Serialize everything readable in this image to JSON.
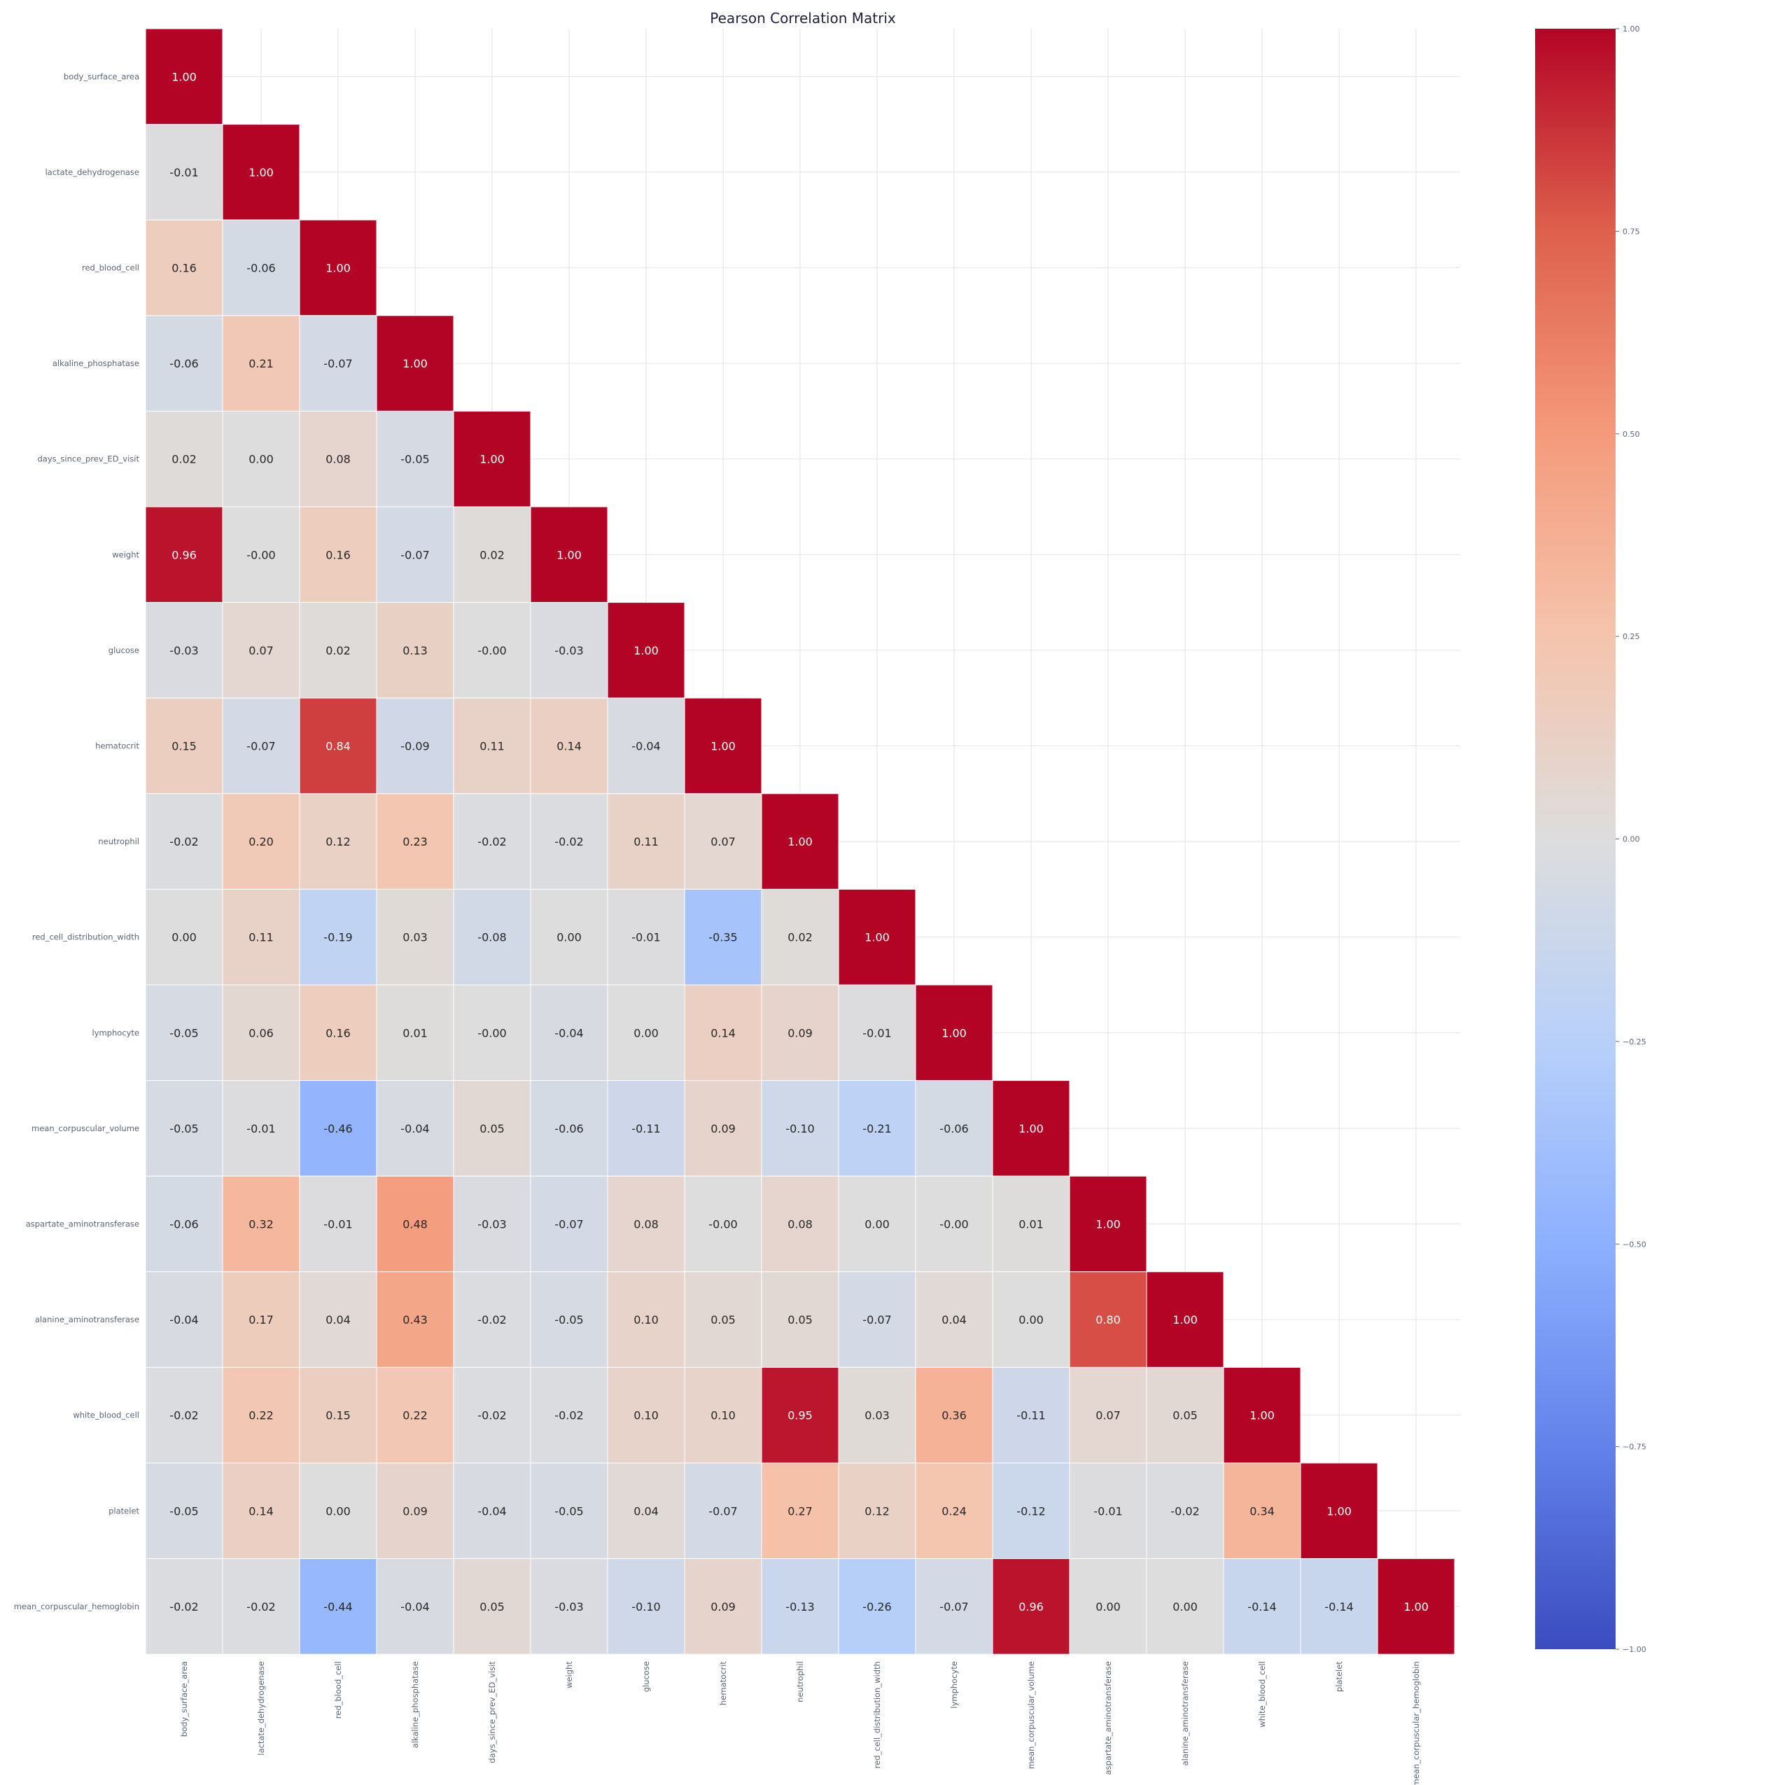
{
  "chart_data": {
    "type": "heatmap",
    "title": "Pearson Correlation Matrix",
    "variables": [
      "body_surface_area",
      "lactate_dehydrogenase",
      "red_blood_cell",
      "alkaline_phosphatase",
      "days_since_prev_ED_visit",
      "weight",
      "glucose",
      "hematocrit",
      "neutrophil",
      "red_cell_distribution_width",
      "lymphocyte",
      "mean_corpuscular_volume",
      "aspartate_aminotransferase",
      "alanine_aminotransferase",
      "white_blood_cell",
      "platelet",
      "mean_corpuscular_hemoglobin"
    ],
    "matrix_lower": [
      [
        "1.00"
      ],
      [
        "-0.01",
        "1.00"
      ],
      [
        "0.16",
        "-0.06",
        "1.00"
      ],
      [
        "-0.06",
        "0.21",
        "-0.07",
        "1.00"
      ],
      [
        "0.02",
        "0.00",
        "0.08",
        "-0.05",
        "1.00"
      ],
      [
        "0.96",
        "-0.00",
        "0.16",
        "-0.07",
        "0.02",
        "1.00"
      ],
      [
        "-0.03",
        "0.07",
        "0.02",
        "0.13",
        "-0.00",
        "-0.03",
        "1.00"
      ],
      [
        "0.15",
        "-0.07",
        "0.84",
        "-0.09",
        "0.11",
        "0.14",
        "-0.04",
        "1.00"
      ],
      [
        "-0.02",
        "0.20",
        "0.12",
        "0.23",
        "-0.02",
        "-0.02",
        "0.11",
        "0.07",
        "1.00"
      ],
      [
        "0.00",
        "0.11",
        "-0.19",
        "0.03",
        "-0.08",
        "0.00",
        "-0.01",
        "-0.35",
        "0.02",
        "1.00"
      ],
      [
        "-0.05",
        "0.06",
        "0.16",
        "0.01",
        "-0.00",
        "-0.04",
        "0.00",
        "0.14",
        "0.09",
        "-0.01",
        "1.00"
      ],
      [
        "-0.05",
        "-0.01",
        "-0.46",
        "-0.04",
        "0.05",
        "-0.06",
        "-0.11",
        "0.09",
        "-0.10",
        "-0.21",
        "-0.06",
        "1.00"
      ],
      [
        "-0.06",
        "0.32",
        "-0.01",
        "0.48",
        "-0.03",
        "-0.07",
        "0.08",
        "-0.00",
        "0.08",
        "0.00",
        "-0.00",
        "0.01",
        "1.00"
      ],
      [
        "-0.04",
        "0.17",
        "0.04",
        "0.43",
        "-0.02",
        "-0.05",
        "0.10",
        "0.05",
        "0.05",
        "-0.07",
        "0.04",
        "0.00",
        "0.80",
        "1.00"
      ],
      [
        "-0.02",
        "0.22",
        "0.15",
        "0.22",
        "-0.02",
        "-0.02",
        "0.10",
        "0.10",
        "0.95",
        "0.03",
        "0.36",
        "-0.11",
        "0.07",
        "0.05",
        "1.00"
      ],
      [
        "-0.05",
        "0.14",
        "0.00",
        "0.09",
        "-0.04",
        "-0.05",
        "0.04",
        "-0.07",
        "0.27",
        "0.12",
        "0.24",
        "-0.12",
        "-0.01",
        "-0.02",
        "0.34",
        "1.00"
      ],
      [
        "-0.02",
        "-0.02",
        "-0.44",
        "-0.04",
        "0.05",
        "-0.03",
        "-0.10",
        "0.09",
        "-0.13",
        "-0.26",
        "-0.07",
        "0.96",
        "0.00",
        "0.00",
        "-0.14",
        "-0.14",
        "1.00"
      ]
    ],
    "colorbar": {
      "range": [
        -1,
        1
      ],
      "ticks": [
        "1.00",
        "0.75",
        "0.50",
        "0.25",
        "0.00",
        "−0.25",
        "−0.50",
        "−0.75",
        "−1.00"
      ],
      "colormap": "coolwarm"
    },
    "grid": true,
    "colors": {
      "low": "#3b4cc0",
      "mid": "#dddddd",
      "high": "#b40426"
    }
  }
}
